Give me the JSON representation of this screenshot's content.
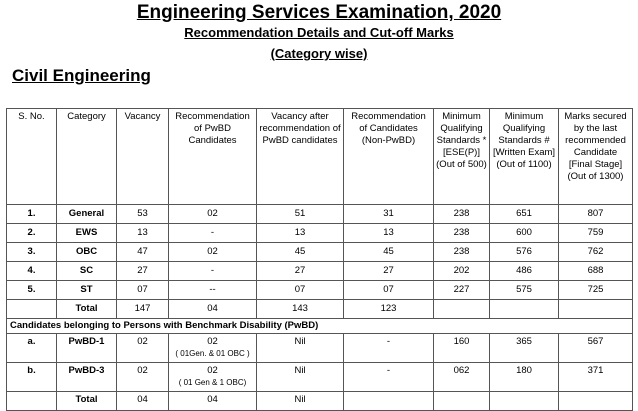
{
  "title": "Engineering Services Examination, 2020",
  "subtitle": "Recommendation Details and Cut-off Marks",
  "subtitle2": "(Category wise)",
  "section": "Civil Engineering",
  "headers": [
    "S. No.",
    "Category",
    "Vacancy",
    "Recommendation of PwBD Candidates",
    "Vacancy after recommendation of PwBD candidates",
    "Recommendation of Candidates (Non-PwBD)",
    "Minimum Qualifying Standards * [ESE(P)] (Out of 500)",
    "Minimum Qualifying Standards # [Written Exam] (Out of 1100)",
    "Marks secured by the last recommended Candidate [Final Stage] (Out of 1300)"
  ],
  "rows": [
    [
      "1.",
      "General",
      "53",
      "02",
      "51",
      "31",
      "238",
      "651",
      "807"
    ],
    [
      "2.",
      "EWS",
      "13",
      "-",
      "13",
      "13",
      "238",
      "600",
      "759"
    ],
    [
      "3.",
      "OBC",
      "47",
      "02",
      "45",
      "45",
      "238",
      "576",
      "762"
    ],
    [
      "4.",
      "SC",
      "27",
      "-",
      "27",
      "27",
      "202",
      "486",
      "688"
    ],
    [
      "5.",
      "ST",
      "07",
      "--",
      "07",
      "07",
      "227",
      "575",
      "725"
    ],
    [
      "",
      "Total",
      "147",
      "04",
      "143",
      "123",
      "",
      "",
      ""
    ]
  ],
  "pwbd_heading": "Candidates belonging to Persons with Benchmark Disability (PwBD)",
  "pwbd_rows": [
    {
      "sno": "a.",
      "cat": "PwBD-1",
      "vac": "02",
      "rec": "02",
      "rec_note": "( 01Gen. & 01 OBC )",
      "after": "Nil",
      "nonpw": "-",
      "p": "160",
      "w": "365",
      "f": "567"
    },
    {
      "sno": "b.",
      "cat": "PwBD-3",
      "vac": "02",
      "rec": "02",
      "rec_note": "( 01 Gen & 1 OBC)",
      "after": "Nil",
      "nonpw": "-",
      "p": "062",
      "w": "180",
      "f": "371"
    },
    {
      "sno": "",
      "cat": "Total",
      "vac": "04",
      "rec": "04",
      "rec_note": "",
      "after": "Nil",
      "nonpw": "",
      "p": "",
      "w": "",
      "f": ""
    }
  ]
}
